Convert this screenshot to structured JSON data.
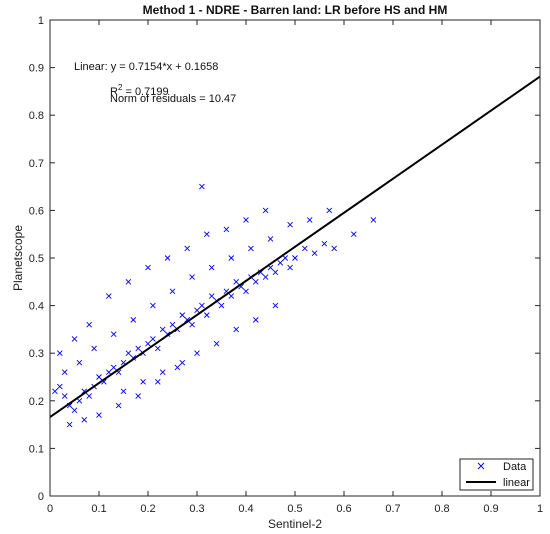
{
  "chart_data": {
    "type": "scatter",
    "title": "Method 1 - NDRE - Barren land: LR before HS and HM",
    "xlabel": "Sentinel-2",
    "ylabel": "Planetscope",
    "xlim": [
      0,
      1
    ],
    "ylim": [
      0,
      1
    ],
    "xticks": [
      "0",
      "0.1",
      "0.2",
      "0.3",
      "0.4",
      "0.5",
      "0.6",
      "0.7",
      "0.8",
      "0.9",
      "1"
    ],
    "yticks": [
      "0",
      "0.1",
      "0.2",
      "0.3",
      "0.4",
      "0.5",
      "0.6",
      "0.7",
      "0.8",
      "0.9",
      "1"
    ],
    "grid": false,
    "legend_position": "bottom-right",
    "marker_color": "#0000ff",
    "line_color": "#000000",
    "annotation": {
      "linear": "Linear:  y = 0.7154*x + 0.1658",
      "r2_base": "R",
      "r2_sup": "2",
      "r2_value": " = 0.7199",
      "residuals": "Norm of residuals = 10.47"
    },
    "fit": {
      "slope": 0.7154,
      "intercept": 0.1658
    },
    "series": [
      {
        "name": "Data",
        "marker": "x",
        "x": [
          0.01,
          0.02,
          0.03,
          0.04,
          0.05,
          0.06,
          0.07,
          0.08,
          0.09,
          0.1,
          0.11,
          0.12,
          0.13,
          0.14,
          0.15,
          0.16,
          0.17,
          0.18,
          0.19,
          0.2,
          0.21,
          0.22,
          0.23,
          0.24,
          0.25,
          0.26,
          0.27,
          0.28,
          0.29,
          0.3,
          0.31,
          0.32,
          0.33,
          0.34,
          0.35,
          0.36,
          0.37,
          0.38,
          0.39,
          0.4,
          0.41,
          0.42,
          0.43,
          0.44,
          0.45,
          0.46,
          0.47,
          0.48,
          0.49,
          0.5,
          0.52,
          0.54,
          0.56,
          0.58,
          0.62,
          0.66,
          0.02,
          0.05,
          0.08,
          0.12,
          0.16,
          0.2,
          0.24,
          0.28,
          0.32,
          0.36,
          0.4,
          0.44,
          0.04,
          0.07,
          0.1,
          0.14,
          0.18,
          0.22,
          0.26,
          0.3,
          0.34,
          0.38,
          0.42,
          0.46,
          0.03,
          0.06,
          0.09,
          0.13,
          0.17,
          0.21,
          0.25,
          0.29,
          0.33,
          0.37,
          0.41,
          0.45,
          0.49,
          0.53,
          0.57,
          0.15,
          0.19,
          0.23,
          0.27,
          0.31
        ],
        "y": [
          0.22,
          0.23,
          0.21,
          0.19,
          0.18,
          0.2,
          0.22,
          0.21,
          0.23,
          0.25,
          0.24,
          0.26,
          0.27,
          0.26,
          0.28,
          0.3,
          0.29,
          0.31,
          0.3,
          0.32,
          0.33,
          0.31,
          0.35,
          0.34,
          0.36,
          0.35,
          0.38,
          0.37,
          0.36,
          0.39,
          0.4,
          0.38,
          0.42,
          0.41,
          0.4,
          0.43,
          0.42,
          0.45,
          0.44,
          0.43,
          0.46,
          0.45,
          0.47,
          0.46,
          0.48,
          0.47,
          0.49,
          0.5,
          0.48,
          0.5,
          0.52,
          0.51,
          0.53,
          0.52,
          0.55,
          0.58,
          0.3,
          0.33,
          0.36,
          0.42,
          0.45,
          0.48,
          0.5,
          0.52,
          0.55,
          0.56,
          0.58,
          0.6,
          0.15,
          0.16,
          0.17,
          0.19,
          0.21,
          0.24,
          0.27,
          0.3,
          0.32,
          0.35,
          0.37,
          0.4,
          0.26,
          0.28,
          0.31,
          0.34,
          0.37,
          0.4,
          0.43,
          0.46,
          0.48,
          0.5,
          0.52,
          0.54,
          0.57,
          0.58,
          0.6,
          0.22,
          0.24,
          0.26,
          0.28,
          0.65
        ]
      },
      {
        "name": "linear",
        "type": "line",
        "x": [
          0,
          1
        ],
        "y": [
          0.1658,
          0.8812
        ]
      }
    ]
  }
}
